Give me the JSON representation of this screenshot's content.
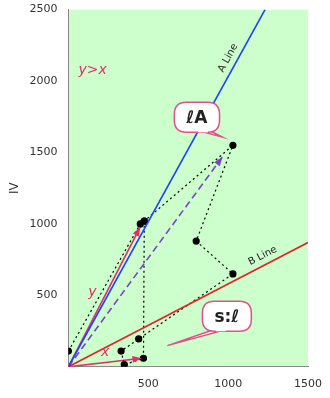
{
  "chart_data": {
    "type": "scatter",
    "ylabel": "IV",
    "xlim": [
      0,
      1500
    ],
    "ylim": [
      0,
      2500
    ],
    "xticks": [
      500,
      1000,
      1500
    ],
    "yticks": [
      500,
      1000,
      1500,
      2000,
      2500
    ],
    "grid": false,
    "annotations": [
      "y>x",
      "ℓA",
      "s:ℓ"
    ],
    "series": [
      {
        "name": "A Line",
        "color": "#1f3fff",
        "line_style": "solid",
        "marker": "none",
        "x": [
          0,
          1231
        ],
        "values": [
          0,
          2500
        ]
      },
      {
        "name": "B Line",
        "color": "#e8202a",
        "line_style": "solid",
        "marker": "none",
        "x": [
          0,
          1500
        ],
        "values": [
          0,
          870
        ]
      },
      {
        "color": "#000000",
        "line_style": "dotted",
        "marker": "circle",
        "x": [
          0,
          450,
          475,
          1030,
          800,
          1030,
          440,
          330,
          350,
          470,
          475
        ],
        "values": [
          110,
          1000,
          1020,
          1550,
          880,
          650,
          195,
          110,
          15,
          60,
          1020
        ]
      },
      {
        "name": "y",
        "color": "#e0306a",
        "line_style": "solid",
        "marker": "arrow",
        "x": [
          0,
          450
        ],
        "values": [
          0,
          980
        ]
      },
      {
        "name": "x",
        "color": "#e0306a",
        "line_style": "solid",
        "marker": "arrow",
        "x": [
          0,
          460
        ],
        "values": [
          0,
          60
        ]
      },
      {
        "color": "#7a44c8",
        "line_style": "dashed",
        "marker": "arrow",
        "x": [
          0,
          965
        ],
        "values": [
          0,
          1470
        ]
      }
    ]
  }
}
